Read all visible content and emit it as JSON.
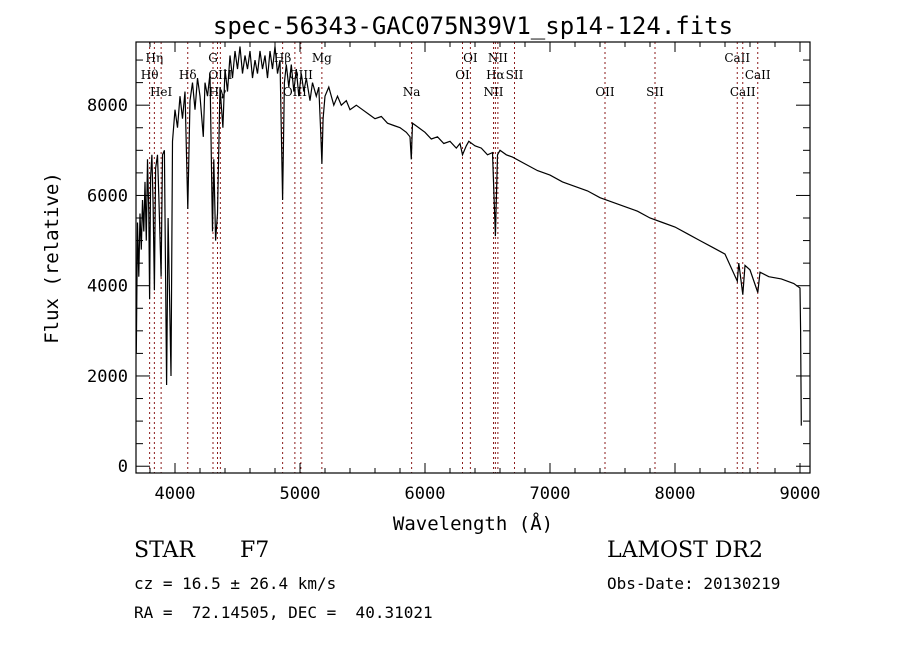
{
  "chart_data": {
    "type": "line",
    "title": "spec-56343-GAC075N39V1_sp14-124.fits",
    "xlabel": "Wavelength (Å)",
    "ylabel": "Flux (relative)",
    "xlim": [
      3688,
      9080
    ],
    "ylim": [
      -150,
      9400
    ],
    "xticks": [
      4000,
      5000,
      6000,
      7000,
      8000,
      9000
    ],
    "yticks": [
      0,
      2000,
      4000,
      6000,
      8000
    ],
    "grid": false,
    "series": [
      {
        "name": "spectrum",
        "points": [
          [
            3690,
            2500
          ],
          [
            3700,
            5400
          ],
          [
            3710,
            4200
          ],
          [
            3720,
            5600
          ],
          [
            3730,
            4800
          ],
          [
            3740,
            5900
          ],
          [
            3750,
            5200
          ],
          [
            3760,
            6300
          ],
          [
            3770,
            5000
          ],
          [
            3780,
            6800
          ],
          [
            3790,
            5600
          ],
          [
            3797,
            3700
          ],
          [
            3805,
            6400
          ],
          [
            3815,
            6900
          ],
          [
            3825,
            5800
          ],
          [
            3835,
            3900
          ],
          [
            3845,
            6600
          ],
          [
            3860,
            6900
          ],
          [
            3870,
            6000
          ],
          [
            3889,
            4200
          ],
          [
            3900,
            6900
          ],
          [
            3915,
            7000
          ],
          [
            3933,
            1800
          ],
          [
            3945,
            5500
          ],
          [
            3968,
            2000
          ],
          [
            3980,
            7200
          ],
          [
            4000,
            7900
          ],
          [
            4020,
            7500
          ],
          [
            4040,
            8200
          ],
          [
            4060,
            7700
          ],
          [
            4080,
            8300
          ],
          [
            4102,
            5700
          ],
          [
            4120,
            8100
          ],
          [
            4140,
            8500
          ],
          [
            4160,
            7900
          ],
          [
            4180,
            8600
          ],
          [
            4200,
            8200
          ],
          [
            4226,
            7300
          ],
          [
            4240,
            8500
          ],
          [
            4260,
            8200
          ],
          [
            4280,
            8700
          ],
          [
            4300,
            5200
          ],
          [
            4310,
            6800
          ],
          [
            4325,
            5000
          ],
          [
            4340,
            5600
          ],
          [
            4360,
            8400
          ],
          [
            4383,
            7500
          ],
          [
            4400,
            8800
          ],
          [
            4420,
            8300
          ],
          [
            4440,
            9100
          ],
          [
            4460,
            8600
          ],
          [
            4480,
            9200
          ],
          [
            4500,
            8800
          ],
          [
            4520,
            9300
          ],
          [
            4540,
            8700
          ],
          [
            4560,
            9100
          ],
          [
            4580,
            8800
          ],
          [
            4600,
            9200
          ],
          [
            4620,
            8600
          ],
          [
            4640,
            9000
          ],
          [
            4660,
            8700
          ],
          [
            4680,
            9200
          ],
          [
            4700,
            8800
          ],
          [
            4720,
            9100
          ],
          [
            4740,
            8600
          ],
          [
            4760,
            9200
          ],
          [
            4780,
            8800
          ],
          [
            4800,
            9300
          ],
          [
            4820,
            8700
          ],
          [
            4840,
            9000
          ],
          [
            4861,
            5900
          ],
          [
            4875,
            8500
          ],
          [
            4890,
            8900
          ],
          [
            4910,
            8400
          ],
          [
            4930,
            8900
          ],
          [
            4950,
            8300
          ],
          [
            4970,
            8800
          ],
          [
            4990,
            8200
          ],
          [
            5010,
            8700
          ],
          [
            5030,
            8300
          ],
          [
            5050,
            8600
          ],
          [
            5080,
            8100
          ],
          [
            5100,
            8500
          ],
          [
            5130,
            8200
          ],
          [
            5150,
            8400
          ],
          [
            5167,
            7300
          ],
          [
            5175,
            6700
          ],
          [
            5185,
            7700
          ],
          [
            5200,
            8200
          ],
          [
            5230,
            8400
          ],
          [
            5270,
            8000
          ],
          [
            5300,
            8200
          ],
          [
            5330,
            8000
          ],
          [
            5370,
            8100
          ],
          [
            5400,
            7900
          ],
          [
            5450,
            8000
          ],
          [
            5500,
            7900
          ],
          [
            5550,
            7800
          ],
          [
            5600,
            7700
          ],
          [
            5650,
            7750
          ],
          [
            5700,
            7600
          ],
          [
            5750,
            7550
          ],
          [
            5800,
            7500
          ],
          [
            5850,
            7400
          ],
          [
            5880,
            7300
          ],
          [
            5890,
            6800
          ],
          [
            5900,
            7600
          ],
          [
            5950,
            7500
          ],
          [
            6000,
            7400
          ],
          [
            6050,
            7250
          ],
          [
            6100,
            7300
          ],
          [
            6150,
            7150
          ],
          [
            6200,
            7200
          ],
          [
            6250,
            7050
          ],
          [
            6280,
            7150
          ],
          [
            6300,
            6900
          ],
          [
            6330,
            7100
          ],
          [
            6350,
            7200
          ],
          [
            6400,
            7100
          ],
          [
            6450,
            7050
          ],
          [
            6500,
            6900
          ],
          [
            6540,
            6950
          ],
          [
            6563,
            5100
          ],
          [
            6580,
            6900
          ],
          [
            6600,
            7000
          ],
          [
            6650,
            6900
          ],
          [
            6700,
            6850
          ],
          [
            6800,
            6700
          ],
          [
            6900,
            6550
          ],
          [
            7000,
            6450
          ],
          [
            7100,
            6300
          ],
          [
            7200,
            6200
          ],
          [
            7300,
            6100
          ],
          [
            7400,
            5950
          ],
          [
            7500,
            5850
          ],
          [
            7600,
            5750
          ],
          [
            7700,
            5650
          ],
          [
            7800,
            5500
          ],
          [
            7900,
            5400
          ],
          [
            8000,
            5300
          ],
          [
            8100,
            5150
          ],
          [
            8200,
            5000
          ],
          [
            8300,
            4850
          ],
          [
            8400,
            4700
          ],
          [
            8498,
            4100
          ],
          [
            8510,
            4500
          ],
          [
            8542,
            3800
          ],
          [
            8560,
            4450
          ],
          [
            8600,
            4350
          ],
          [
            8662,
            3850
          ],
          [
            8680,
            4300
          ],
          [
            8750,
            4200
          ],
          [
            8850,
            4150
          ],
          [
            8950,
            4050
          ],
          [
            9000,
            3950
          ],
          [
            9005,
            3000
          ],
          [
            9010,
            900
          ]
        ]
      }
    ],
    "line_markers": [
      {
        "label": "Hη",
        "wavelength": 3835,
        "row": 1
      },
      {
        "label": "Hθ",
        "wavelength": 3797,
        "row": 2
      },
      {
        "label": "HeI",
        "wavelength": 3889,
        "row": 3
      },
      {
        "label": "Hδ",
        "wavelength": 4102,
        "row": 2
      },
      {
        "label": "G",
        "wavelength": 4304,
        "row": 1
      },
      {
        "label": "OIII",
        "wavelength": 4363,
        "row": 2
      },
      {
        "label": "Hγ",
        "wavelength": 4340,
        "row": 3
      },
      {
        "label": "Hβ",
        "wavelength": 4861,
        "row": 1
      },
      {
        "label": "OIII",
        "wavelength": 5007,
        "row": 2
      },
      {
        "label": "OIII",
        "wavelength": 4959,
        "row": 3
      },
      {
        "label": "Mg",
        "wavelength": 5175,
        "row": 1
      },
      {
        "label": "Na",
        "wavelength": 5893,
        "row": 3
      },
      {
        "label": "OI",
        "wavelength": 6363,
        "row": 1
      },
      {
        "label": "OI",
        "wavelength": 6300,
        "row": 2
      },
      {
        "label": "NII",
        "wavelength": 6583,
        "row": 1
      },
      {
        "label": "Hα",
        "wavelength": 6563,
        "row": 2
      },
      {
        "label": "SII",
        "wavelength": 6716,
        "row": 2
      },
      {
        "label": "NII",
        "wavelength": 6548,
        "row": 3
      },
      {
        "label": "OII",
        "wavelength": 7440,
        "row": 3
      },
      {
        "label": "SII",
        "wavelength": 7840,
        "row": 3
      },
      {
        "label": "CaII",
        "wavelength": 8498,
        "row": 1
      },
      {
        "label": "CaII",
        "wavelength": 8662,
        "row": 2
      },
      {
        "label": "CaII",
        "wavelength": 8542,
        "row": 3
      }
    ],
    "colors": {
      "spectrum": "#000000",
      "markers": "#8b1a1a"
    }
  },
  "footer": {
    "class": "STAR",
    "subclass": "F7",
    "redshift": "cz = 16.5 ± 26.4 km/s",
    "coords": "RA =  72.14505, DEC =  40.31021",
    "survey": "LAMOST DR2",
    "obs_date": "Obs-Date: 20130219"
  }
}
